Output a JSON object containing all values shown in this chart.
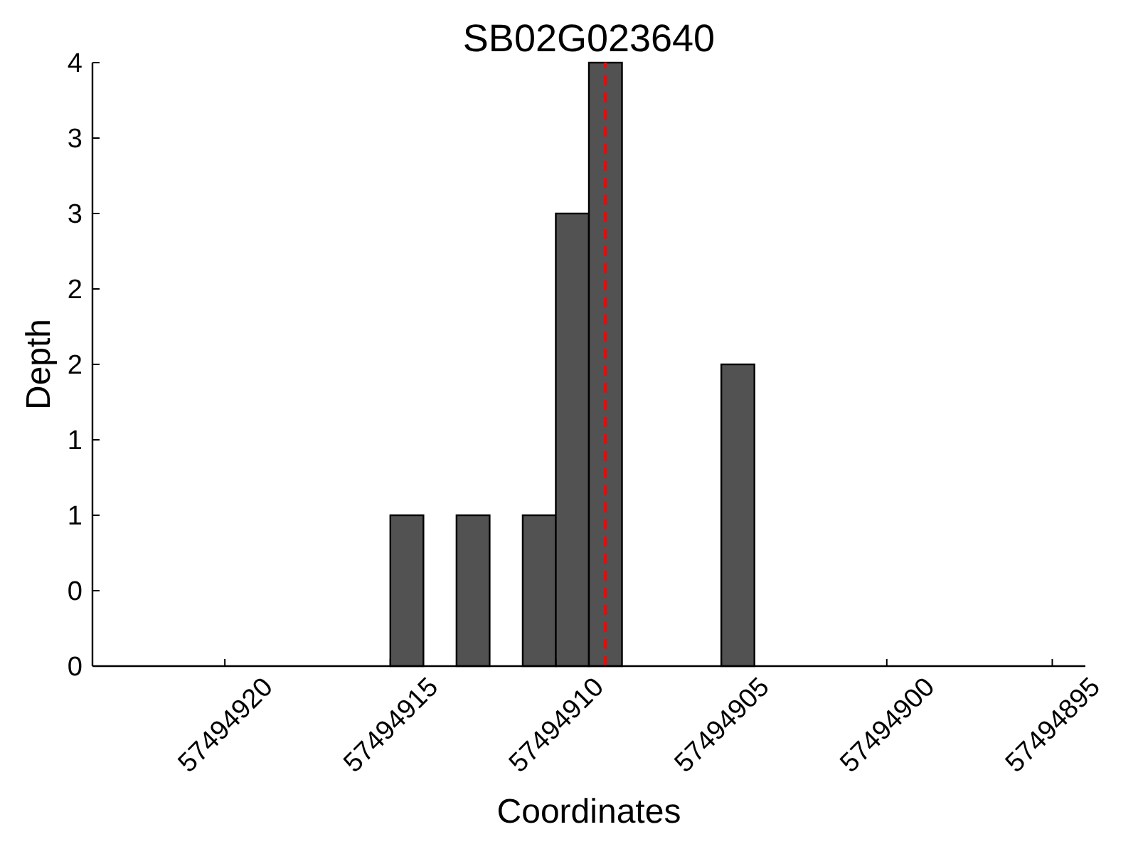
{
  "chart_data": {
    "type": "bar",
    "title": "SB02G023640",
    "xlabel": "Coordinates",
    "ylabel": "Depth",
    "x": [
      57494914.5,
      57494912.5,
      57494910.5,
      57494909.5,
      57494908.5,
      57494904.5
    ],
    "values": [
      1,
      1,
      1,
      3,
      4,
      2
    ],
    "color": "#525252",
    "xlim": [
      57494924,
      57494894
    ],
    "xticks": [
      57494920,
      57494915,
      57494910,
      57494905,
      57494900,
      57494895
    ],
    "ylim": [
      0,
      4
    ],
    "yticks": [
      0,
      {
        "value": 0.5,
        "label": "0"
      },
      1,
      {
        "value": 1.5,
        "label": "1"
      },
      2,
      {
        "value": 2.5,
        "label": "2"
      },
      3,
      {
        "value": 3.5,
        "label": "3"
      },
      4
    ],
    "ref_lines": [
      {
        "axis": "x",
        "value": 57494908.5,
        "color": "#ff0000",
        "line_style": "dashed"
      }
    ]
  }
}
